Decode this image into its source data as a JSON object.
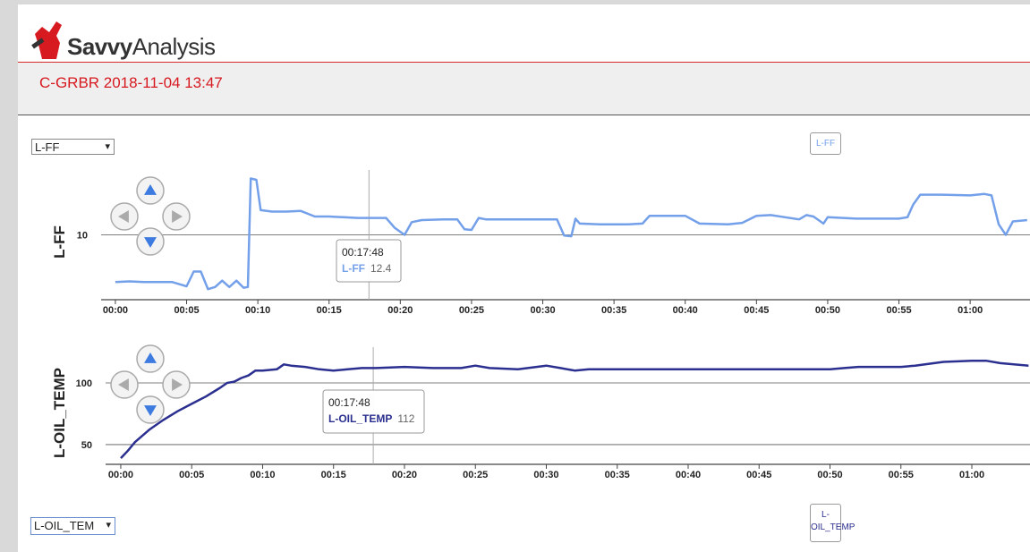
{
  "header": {
    "brand_bold": "Savvy",
    "brand_light": "Analysis",
    "flight_title": "C-GRBR 2018-11-04 13:47"
  },
  "charts": [
    {
      "type": "line",
      "select_label": "L-FF",
      "legend_button": "L-FF",
      "y_label": "L-FF",
      "color": "#74a0ea",
      "ylim": [
        0.8,
        19.2
      ],
      "yticks": [
        10
      ],
      "xlim": [
        -1,
        64.2
      ],
      "xticks": [
        {
          "value": 0,
          "label": "00:00"
        },
        {
          "value": 5,
          "label": "00:05"
        },
        {
          "value": 10,
          "label": "00:10"
        },
        {
          "value": 15,
          "label": "00:15"
        },
        {
          "value": 20,
          "label": "00:20"
        },
        {
          "value": 25,
          "label": "00:25"
        },
        {
          "value": 30,
          "label": "00:30"
        },
        {
          "value": 35,
          "label": "00:35"
        },
        {
          "value": 40,
          "label": "00:40"
        },
        {
          "value": 45,
          "label": "00:45"
        },
        {
          "value": 50,
          "label": "00:50"
        },
        {
          "value": 55,
          "label": "00:55"
        },
        {
          "value": 60,
          "label": "01:00"
        }
      ],
      "x": [
        0,
        1,
        2,
        3,
        4,
        4.5,
        5,
        5.5,
        6,
        6.5,
        7,
        7.5,
        8,
        8.5,
        9,
        9.3,
        9.5,
        9.9,
        10.2,
        11,
        12,
        13,
        14,
        15,
        16,
        17,
        18,
        19,
        19.6,
        20.3,
        20.8,
        21.5,
        23,
        24,
        24.5,
        25,
        25.5,
        26,
        28,
        30,
        31,
        31.5,
        32,
        32.3,
        32.6,
        34,
        36,
        37,
        37.5,
        40,
        41,
        43,
        44,
        45,
        46,
        47,
        48,
        48.5,
        49,
        49.7,
        50,
        52,
        55,
        55.6,
        56,
        56.5,
        58,
        60,
        61,
        61.5,
        62,
        62.5,
        63,
        64
      ],
      "values": [
        3.3,
        3.4,
        3.3,
        3.3,
        3.3,
        3.0,
        2.7,
        4.8,
        4.8,
        2.3,
        2.6,
        3.5,
        2.6,
        3.5,
        2.5,
        2.6,
        18.0,
        17.8,
        13.5,
        13.3,
        13.3,
        13.4,
        12.6,
        12.6,
        12.5,
        12.4,
        12.4,
        12.4,
        11.0,
        10.0,
        11.8,
        12.1,
        12.2,
        12.2,
        10.8,
        10.7,
        12.4,
        12.2,
        12.2,
        12.2,
        12.2,
        9.9,
        9.8,
        12.3,
        11.6,
        11.5,
        11.5,
        11.6,
        12.7,
        12.7,
        11.6,
        11.5,
        11.7,
        12.7,
        12.8,
        12.5,
        12.2,
        12.8,
        12.6,
        11.6,
        12.5,
        12.3,
        12.3,
        12.5,
        14.3,
        15.7,
        15.7,
        15.6,
        15.8,
        15.6,
        11.5,
        10.0,
        11.9,
        12.1
      ],
      "cursor": 17.8,
      "tooltip": {
        "time": "00:17:48",
        "series": "L-FF",
        "value": 12.4
      }
    },
    {
      "type": "line",
      "select_label": "L-OIL_TEM",
      "legend_button": "L-OIL_TEMP",
      "y_label": "L-OIL_TEMP",
      "color": "#2b2f8f",
      "ylim": [
        34,
        129
      ],
      "yticks": [
        50,
        100
      ],
      "xlim": [
        -1.07,
        64.1
      ],
      "xticks": [
        {
          "value": 0,
          "label": "00:00"
        },
        {
          "value": 5,
          "label": "00:05"
        },
        {
          "value": 10,
          "label": "00:10"
        },
        {
          "value": 15,
          "label": "00:15"
        },
        {
          "value": 20,
          "label": "00:20"
        },
        {
          "value": 25,
          "label": "00:25"
        },
        {
          "value": 30,
          "label": "00:30"
        },
        {
          "value": 35,
          "label": "00:35"
        },
        {
          "value": 40,
          "label": "00:40"
        },
        {
          "value": 45,
          "label": "00:45"
        },
        {
          "value": 50,
          "label": "00:50"
        },
        {
          "value": 55,
          "label": "00:55"
        },
        {
          "value": 60,
          "label": "01:00"
        }
      ],
      "x": [
        0,
        0.5,
        1,
        2,
        3,
        4,
        5,
        6,
        7,
        7.5,
        8,
        8.5,
        9,
        9.5,
        10,
        11,
        11.5,
        12,
        13,
        14,
        15,
        16,
        17,
        18,
        20,
        22,
        24,
        25,
        26,
        28,
        30,
        31,
        32,
        33,
        35,
        40,
        45,
        50,
        51,
        52,
        55,
        56,
        58,
        60,
        61,
        62,
        64
      ],
      "values": [
        39,
        45,
        52,
        62,
        70,
        77,
        83,
        89,
        96,
        100,
        101,
        104,
        106,
        110,
        110,
        111,
        115,
        114,
        113,
        111,
        110,
        111,
        112,
        112,
        113,
        112,
        112,
        114,
        112,
        111,
        114,
        112,
        110,
        111,
        111,
        111,
        111,
        111,
        112,
        113,
        113,
        114,
        117,
        118,
        118,
        116,
        114
      ],
      "cursor": 17.8,
      "tooltip": {
        "time": "00:17:48",
        "series": "L-OIL_TEMP",
        "value": 112
      }
    }
  ]
}
